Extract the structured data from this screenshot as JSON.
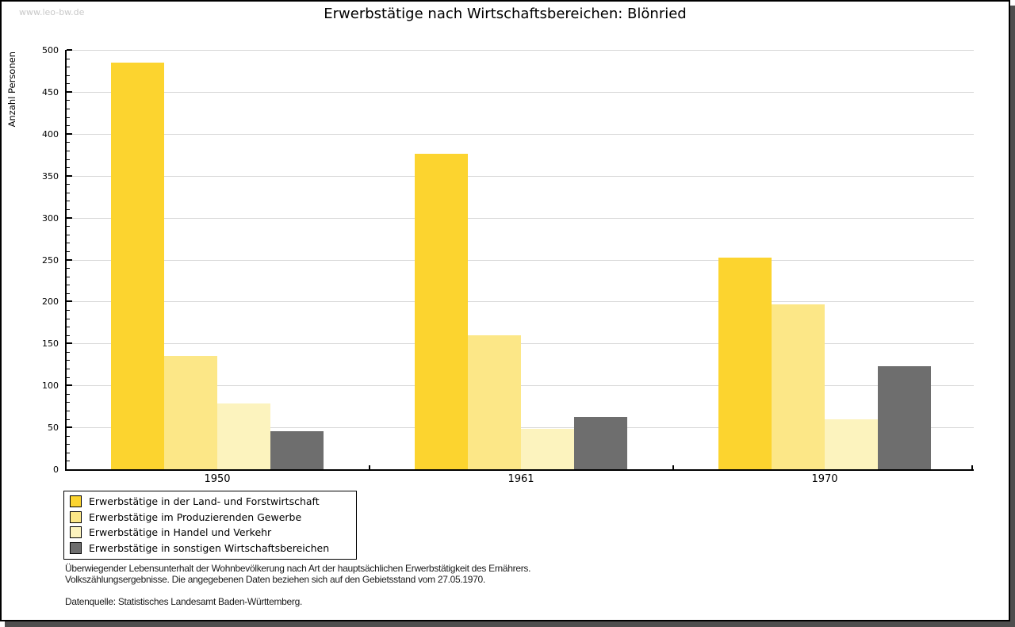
{
  "watermark": "www.leo-bw.de",
  "title": "Erwerbstätige nach Wirtschaftsbereichen: Blönried",
  "chart_data": {
    "type": "bar",
    "title": "Erwerbstätige nach Wirtschaftsbereichen: Blönried",
    "xlabel": "",
    "ylabel": "Anzahl Personen",
    "categories": [
      "1950",
      "1961",
      "1970"
    ],
    "series": [
      {
        "name": "Erwerbstätige in der Land- und Forstwirtschaft",
        "color": "#fcd42f",
        "values": [
          485,
          376,
          252
        ]
      },
      {
        "name": "Erwerbstätige im Produzierenden Gewerbe",
        "color": "#fce787",
        "values": [
          135,
          160,
          197
        ]
      },
      {
        "name": "Erwerbstätige in Handel und Verkehr",
        "color": "#fcf3be",
        "values": [
          78,
          48,
          60
        ]
      },
      {
        "name": "Erwerbstätige in sonstigen Wirtschaftsbereichen",
        "color": "#6e6e6e",
        "values": [
          45,
          62,
          123
        ]
      }
    ],
    "ylim": [
      0,
      500
    ],
    "ytick_step": 50,
    "yminor_step": 10,
    "grid": true,
    "gridline_color": "#d9d9d9",
    "legend_position": "bottom-left"
  },
  "footer": {
    "line1": "Überwiegender Lebensunterhalt der Wohnbevölkerung nach Art der hauptsächlichen Erwerbstätigkeit des Ernährers.",
    "line2": "Volkszählungsergebnisse. Die angegebenen Daten beziehen sich auf den Gebietsstand vom 27.05.1970.",
    "source": "Datenquelle: Statistisches Landesamt Baden-Württemberg."
  }
}
